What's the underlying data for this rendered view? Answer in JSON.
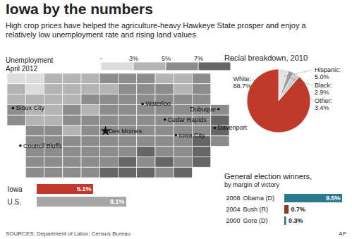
{
  "title": "Iowa by the numbers",
  "subtitle": "High crop prices have helped the agriculture-heavy Hawkeye State prosper and enjoy a relatively low unemployment rate and rising land values.",
  "source": "SOURCES: Department of Labor; Census Bureau",
  "credit": "AP",
  "chart_data": [
    {
      "type": "heatmap",
      "title": "Unemployment",
      "subtitle": "April 2012",
      "tick_labels": false,
      "cells": [
        [
          2,
          2,
          4,
          4,
          4,
          6,
          6,
          6,
          4,
          4,
          6,
          null
        ],
        [
          4,
          2,
          4,
          4,
          4,
          4,
          6,
          6,
          6,
          4,
          6,
          null
        ],
        [
          4,
          4,
          4,
          4,
          6,
          6,
          6,
          6,
          6,
          6,
          6,
          null
        ],
        [
          6,
          4,
          4,
          6,
          4,
          6,
          6,
          6,
          6,
          6,
          6,
          6
        ],
        [
          6,
          4,
          4,
          6,
          6,
          6,
          6,
          6,
          6,
          6,
          6,
          8
        ],
        [
          null,
          6,
          6,
          4,
          6,
          6,
          6,
          6,
          6,
          6,
          6,
          8
        ],
        [
          null,
          6,
          6,
          6,
          6,
          6,
          6,
          6,
          6,
          6,
          8,
          6
        ],
        [
          null,
          6,
          6,
          6,
          6,
          6,
          6,
          8,
          6,
          6,
          8,
          null
        ],
        [
          null,
          6,
          6,
          6,
          6,
          6,
          8,
          6,
          8,
          6,
          8,
          null
        ],
        [
          null,
          6,
          6,
          6,
          6,
          8,
          8,
          8,
          6,
          8,
          null,
          null
        ]
      ],
      "colorbar": {
        "range": [
          1,
          9
        ],
        "thresholds": [
          3,
          5,
          7
        ],
        "colors": [
          "#dcdcdc",
          "#b4b4b4",
          "#8c8c8c",
          "#666666"
        ],
        "ticks": [
          {
            "value": 1,
            "label": "-"
          },
          {
            "value": 3,
            "label": "3%"
          },
          {
            "value": 5,
            "label": "5%"
          },
          {
            "value": 7,
            "label": "7%"
          },
          {
            "value": 9,
            "label": "+"
          }
        ]
      },
      "annotations": [
        {
          "text": "Sioux City",
          "x": 0.3,
          "y": 3.3,
          "marker": "circle"
        },
        {
          "text": "Waterloo",
          "x": 7.3,
          "y": 2.9,
          "marker": "circle"
        },
        {
          "text": "Dubuque",
          "x": 11.4,
          "y": 3.4,
          "marker": "circle"
        },
        {
          "text": "Cedar Rapids",
          "x": 8.5,
          "y": 4.4,
          "marker": "circle"
        },
        {
          "text": "Iowa City",
          "x": 9.1,
          "y": 5.9,
          "marker": "circle"
        },
        {
          "text": "Davenport",
          "x": 11.2,
          "y": 5.2,
          "marker": "circle"
        },
        {
          "text": "Des Moines",
          "x": 5.3,
          "y": 5.5,
          "marker": "star"
        },
        {
          "text": "Council Bluffs",
          "x": 0.7,
          "y": 6.9,
          "marker": "circle"
        }
      ]
    },
    {
      "type": "bar",
      "orientation": "horizontal",
      "categories": [
        "Iowa",
        "U.S."
      ],
      "values": [
        5.1,
        8.1
      ],
      "value_labels": [
        "5.1%",
        "8.1%"
      ],
      "colors": [
        "#c0392b",
        "#a6a6a6"
      ],
      "xlim": [
        0,
        8.1
      ],
      "data_labels": true,
      "tick_labels": "y"
    },
    {
      "type": "pie",
      "title": "Racial breakdown, 2010",
      "categories": [
        "Hispanic:",
        "Black:",
        "Other:",
        "White:"
      ],
      "values": [
        5.0,
        2.9,
        3.4,
        88.7
      ],
      "value_labels": [
        "5.0%",
        "2.9%",
        "3.4%",
        "88.7%"
      ],
      "colors": [
        "#e2e2e2",
        "#a0a0a0",
        "#cdcdcd",
        "#c0392b"
      ],
      "data_labels": true
    },
    {
      "type": "bar",
      "orientation": "horizontal",
      "title": "General election winners,",
      "subtitle": "by margin of victory",
      "categories": [
        "2008",
        "2004",
        "2000"
      ],
      "candidates": [
        "Obama (D)",
        "Bush (R)",
        "Gore (D)"
      ],
      "values": [
        9.5,
        0.7,
        0.3
      ],
      "value_labels": [
        "9.5%",
        "0.7%",
        "0.3%"
      ],
      "colors": [
        "#2b7b8f",
        "#8c3a28",
        "#2b7b8f"
      ],
      "xlim": [
        0,
        9.5
      ],
      "data_labels": true,
      "tick_labels": "y"
    }
  ]
}
